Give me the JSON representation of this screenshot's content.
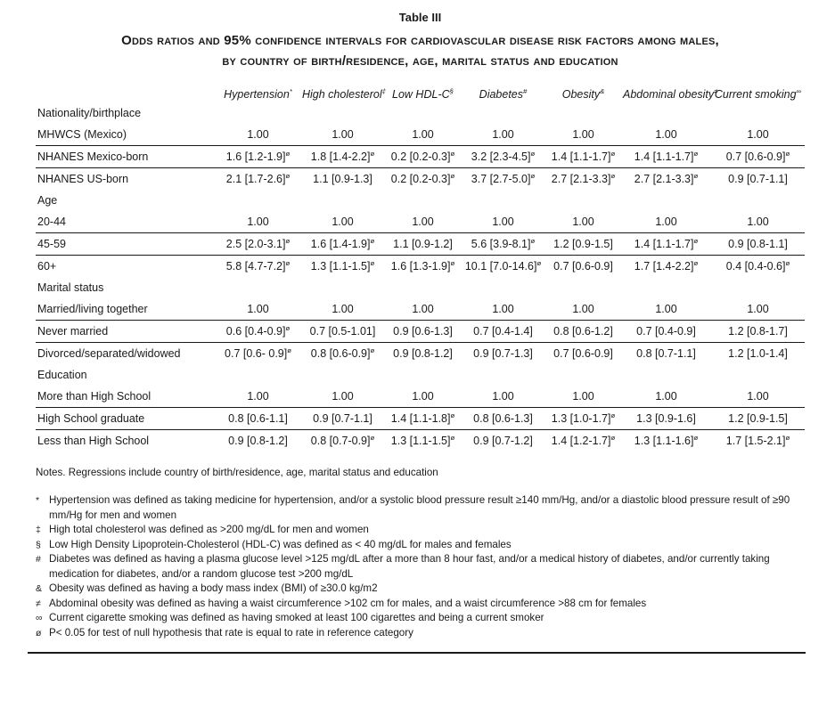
{
  "document": {
    "table_label": "Table III",
    "title_line1": "Odds ratios and 95% confidence intervals for cardiovascular disease risk factors among males,",
    "title_line2": "by country of birth/residence, age, marital status and education"
  },
  "table": {
    "significance_marker": "ø",
    "columns": [
      {
        "label": "Hypertension",
        "marker": "*"
      },
      {
        "label": "High cholesterol",
        "marker": "‡"
      },
      {
        "label": "Low HDL-C",
        "marker": "§"
      },
      {
        "label": "Diabetes",
        "marker": "#"
      },
      {
        "label": "Obesity",
        "marker": "&"
      },
      {
        "label": "Abdominal obesity",
        "marker": "≠"
      },
      {
        "label": "Current smoking",
        "marker": "∞"
      }
    ],
    "sections": [
      {
        "label": "Nationality/birthplace",
        "rows": [
          {
            "label": "MHWCS (Mexico)",
            "cells": [
              "1.00",
              "1.00",
              "1.00",
              "1.00",
              "1.00",
              "1.00",
              "1.00"
            ]
          },
          {
            "label": "NHANES Mexico-born",
            "cells": [
              "1.6 [1.2-1.9]ø",
              "1.8 [1.4-2.2]ø",
              "0.2 [0.2-0.3]ø",
              "3.2 [2.3-4.5]ø",
              "1.4 [1.1-1.7]ø",
              "1.4 [1.1-1.7]ø",
              "0.7 [0.6-0.9]ø"
            ]
          },
          {
            "label": "NHANES US-born",
            "cells": [
              "2.1 [1.7-2.6]ø",
              "1.1 [0.9-1.3]",
              "0.2 [0.2-0.3]ø",
              "3.7 [2.7-5.0]ø",
              "2.7 [2.1-3.3]ø",
              "2.7 [2.1-3.3]ø",
              "0.9 [0.7-1.1]"
            ]
          }
        ]
      },
      {
        "label": "Age",
        "rows": [
          {
            "label": "20-44",
            "cells": [
              "1.00",
              "1.00",
              "1.00",
              "1.00",
              "1.00",
              "1.00",
              "1.00"
            ]
          },
          {
            "label": "45-59",
            "cells": [
              "2.5 [2.0-3.1]ø",
              "1.6 [1.4-1.9]ø",
              "1.1 [0.9-1.2]",
              "5.6 [3.9-8.1]ø",
              "1.2 [0.9-1.5]",
              "1.4 [1.1-1.7]ø",
              "0.9 [0.8-1.1]"
            ]
          },
          {
            "label": "60+",
            "cells": [
              "5.8 [4.7-7.2]ø",
              "1.3 [1.1-1.5]ø",
              "1.6 [1.3-1.9]ø",
              "10.1 [7.0-14.6]ø",
              "0.7 [0.6-0.9]",
              "1.7 [1.4-2.2]ø",
              "0.4 [0.4-0.6]ø"
            ]
          }
        ]
      },
      {
        "label": "Marital status",
        "rows": [
          {
            "label": "Married/living together",
            "cells": [
              "1.00",
              "1.00",
              "1.00",
              "1.00",
              "1.00",
              "1.00",
              "1.00"
            ]
          },
          {
            "label": "Never married",
            "cells": [
              "0.6 [0.4-0.9]ø",
              "0.7 [0.5-1.01]",
              "0.9 [0.6-1.3]",
              "0.7 [0.4-1.4]",
              "0.8 [0.6-1.2]",
              "0.7 [0.4-0.9]",
              "1.2 [0.8-1.7]"
            ]
          },
          {
            "label": "Divorced/separated/widowed",
            "cells": [
              "0.7 [0.6- 0.9]ø",
              "0.8 [0.6-0.9]ø",
              "0.9 [0.8-1.2]",
              "0.9 [0.7-1.3]",
              "0.7 [0.6-0.9]",
              "0.8 [0.7-1.1]",
              "1.2 [1.0-1.4]"
            ]
          }
        ]
      },
      {
        "label": "Education",
        "rows": [
          {
            "label": "More than High School",
            "cells": [
              "1.00",
              "1.00",
              "1.00",
              "1.00",
              "1.00",
              "1.00",
              "1.00"
            ]
          },
          {
            "label": "High School graduate",
            "cells": [
              "0.8 [0.6-1.1]",
              "0.9 [0.7-1.1]",
              "1.4 [1.1-1.8]ø",
              "0.8 [0.6-1.3]",
              "1.3 [1.0-1.7]ø",
              "1.3 [0.9-1.6]",
              "1.2 [0.9-1.5]"
            ]
          },
          {
            "label": "Less than High School",
            "cells": [
              "0.9 [0.8-1.2]",
              "0.8 [0.7-0.9]ø",
              "1.3 [1.1-1.5]ø",
              "0.9 [0.7-1.2]",
              "1.4 [1.2-1.7]ø",
              "1.3 [1.1-1.6]ø",
              "1.7 [1.5-2.1]ø"
            ]
          }
        ]
      }
    ]
  },
  "notes": {
    "lead": "Notes. Regressions include country of birth/residence, age, marital status and education",
    "items": [
      {
        "marker": "*",
        "text": "Hypertension was defined as taking medicine for hypertension, and/or a systolic blood pressure result ≥140 mm/Hg, and/or a diastolic blood pressure result of ≥90 mm/Hg for men and women"
      },
      {
        "marker": "‡",
        "text": "High total cholesterol was defined as >200 mg/dL for men and women"
      },
      {
        "marker": "§",
        "text": "Low High Density Lipoprotein-Cholesterol (HDL-C) was defined as < 40 mg/dL for males and females"
      },
      {
        "marker": "#",
        "text": "Diabetes was defined as having a plasma glucose level >125 mg/dL after a more than 8 hour fast, and/or a medical history of diabetes, and/or currently taking medication for diabetes, and/or a random glucose test >200 mg/dL"
      },
      {
        "marker": "&",
        "text": "Obesity was defined as having a body mass index (BMI) of ≥30.0 kg/m2"
      },
      {
        "marker": "≠",
        "text": "Abdominal obesity was defined as having a waist circumference >102 cm for males, and a waist circumference >88 cm for females"
      },
      {
        "marker": "∞",
        "text": "Current cigarette smoking was defined as having smoked at least 100 cigarettes and being a current smoker"
      },
      {
        "marker": "ø",
        "text": "P< 0.05 for test of null hypothesis that rate is equal to rate in reference category"
      }
    ]
  }
}
